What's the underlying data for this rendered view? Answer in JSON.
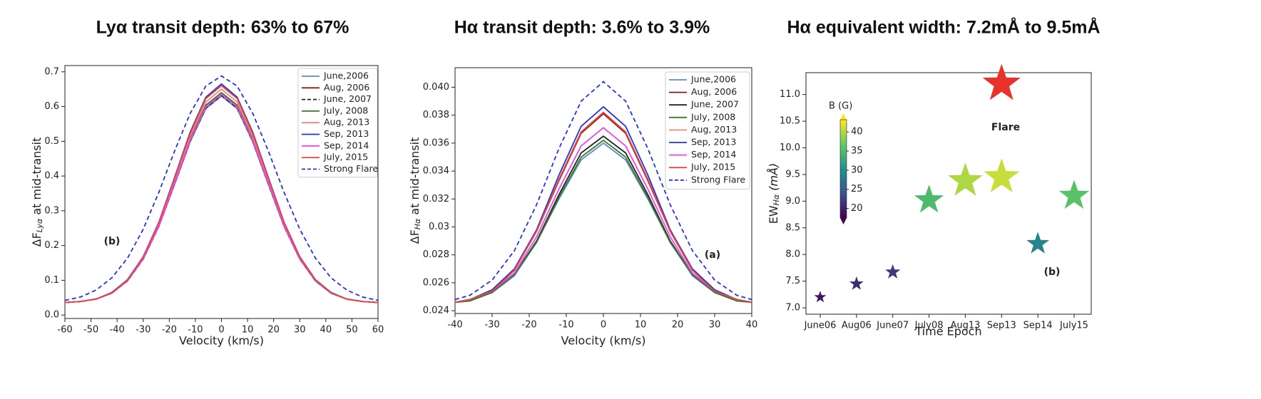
{
  "chart_data": [
    {
      "type": "line",
      "title": "Lyα transit depth: 63% to 67%",
      "xlabel": "Velocity (km/s)",
      "ylabel": {
        "text": "ΔF",
        "sub": "Lyα",
        "rest": " at mid-transit"
      },
      "x": [
        -60,
        -54,
        -48,
        -42,
        -36,
        -30,
        -24,
        -18,
        -12,
        -6,
        0,
        6,
        12,
        18,
        24,
        30,
        36,
        42,
        48,
        54,
        60
      ],
      "xlim": [
        -60,
        60
      ],
      "xticks": [
        -60,
        -50,
        -40,
        -30,
        -20,
        -10,
        0,
        10,
        20,
        30,
        40,
        50,
        60
      ],
      "ylim": [
        -0.01,
        0.718
      ],
      "yticks": [
        {
          "value": 0,
          "label": "0.0"
        },
        0.1,
        0.2,
        0.3,
        0.4,
        0.5,
        0.6,
        0.7
      ],
      "legend": "upper right",
      "annotations": [
        "(b)"
      ],
      "series": [
        {
          "name": "June,2006",
          "color": "#5b8cc4",
          "dash": false,
          "values": [
            0.036,
            0.039,
            0.046,
            0.063,
            0.098,
            0.161,
            0.255,
            0.375,
            0.498,
            0.594,
            0.63,
            0.594,
            0.498,
            0.375,
            0.255,
            0.161,
            0.098,
            0.063,
            0.046,
            0.039,
            0.036
          ]
        },
        {
          "name": "Aug, 2006",
          "color": "#8b1a1a",
          "dash": false,
          "values": [
            0.036,
            0.039,
            0.046,
            0.063,
            0.099,
            0.162,
            0.256,
            0.378,
            0.502,
            0.599,
            0.635,
            0.599,
            0.502,
            0.378,
            0.256,
            0.162,
            0.099,
            0.063,
            0.046,
            0.039,
            0.036
          ]
        },
        {
          "name": "June, 2007",
          "color": "#222222",
          "dash": true,
          "values": [
            0.036,
            0.039,
            0.046,
            0.063,
            0.098,
            0.161,
            0.255,
            0.376,
            0.5,
            0.596,
            0.632,
            0.596,
            0.5,
            0.376,
            0.255,
            0.161,
            0.098,
            0.063,
            0.046,
            0.039,
            0.036
          ]
        },
        {
          "name": "July, 2008",
          "color": "#3a7a2a",
          "dash": false,
          "values": [
            0.036,
            0.039,
            0.046,
            0.063,
            0.099,
            0.163,
            0.258,
            0.38,
            0.506,
            0.604,
            0.64,
            0.604,
            0.506,
            0.38,
            0.258,
            0.163,
            0.099,
            0.063,
            0.046,
            0.039,
            0.036
          ]
        },
        {
          "name": "Aug, 2013",
          "color": "#f08878",
          "dash": false,
          "values": [
            0.036,
            0.039,
            0.046,
            0.064,
            0.1,
            0.165,
            0.262,
            0.386,
            0.514,
            0.613,
            0.65,
            0.613,
            0.514,
            0.386,
            0.262,
            0.165,
            0.1,
            0.064,
            0.046,
            0.039,
            0.036
          ]
        },
        {
          "name": "Sep, 2013",
          "color": "#2233dd",
          "dash": false,
          "values": [
            0.036,
            0.039,
            0.046,
            0.065,
            0.102,
            0.168,
            0.267,
            0.395,
            0.526,
            0.627,
            0.665,
            0.627,
            0.526,
            0.395,
            0.267,
            0.168,
            0.102,
            0.065,
            0.046,
            0.039,
            0.036
          ]
        },
        {
          "name": "Sep, 2014",
          "color": "#ee44ee",
          "dash": false,
          "values": [
            0.036,
            0.039,
            0.046,
            0.063,
            0.099,
            0.162,
            0.256,
            0.378,
            0.502,
            0.599,
            0.635,
            0.599,
            0.502,
            0.378,
            0.256,
            0.162,
            0.099,
            0.063,
            0.046,
            0.039,
            0.036
          ]
        },
        {
          "name": "July, 2015",
          "color": "#e8483a",
          "dash": false,
          "values": [
            0.036,
            0.039,
            0.046,
            0.064,
            0.101,
            0.167,
            0.266,
            0.392,
            0.522,
            0.623,
            0.66,
            0.623,
            0.522,
            0.392,
            0.266,
            0.167,
            0.101,
            0.064,
            0.046,
            0.039,
            0.036
          ]
        },
        {
          "name": "Strong Flare",
          "color": "#2233dd",
          "dash": true,
          "values": [
            0.042,
            0.052,
            0.072,
            0.107,
            0.164,
            0.247,
            0.353,
            0.471,
            0.58,
            0.659,
            0.688,
            0.659,
            0.58,
            0.471,
            0.353,
            0.247,
            0.164,
            0.107,
            0.072,
            0.052,
            0.042
          ]
        }
      ]
    },
    {
      "type": "line",
      "title": "Hα transit depth: 3.6% to 3.9%",
      "xlabel": "Velocity (km/s)",
      "ylabel": {
        "text": "ΔF",
        "sub": "Hα",
        "rest": " at mid-transit"
      },
      "x": [
        -40,
        -36,
        -30,
        -24,
        -18,
        -12,
        -6,
        0,
        6,
        12,
        18,
        24,
        30,
        36,
        40
      ],
      "xlim": [
        -40,
        40
      ],
      "xticks": [
        -40,
        -30,
        -20,
        -10,
        0,
        10,
        20,
        30,
        40
      ],
      "ylim": [
        0.0238,
        0.0414
      ],
      "yticks": [
        0.024,
        0.026,
        0.028,
        0.03,
        0.032,
        0.034,
        0.036,
        0.038,
        {
          "value": 0.04,
          "label": "0.040"
        }
      ],
      "legend": "upper right",
      "annotations": [
        "(a)"
      ],
      "series": [
        {
          "name": "June,2006",
          "color": "#5b8cc4",
          "dash": false,
          "values": [
            0.0246,
            0.0247,
            0.0253,
            0.0265,
            0.0289,
            0.032,
            0.0348,
            0.036,
            0.0348,
            0.032,
            0.0289,
            0.0265,
            0.0253,
            0.0247,
            0.0246
          ]
        },
        {
          "name": "Aug, 2006",
          "color": "#8b1a1a",
          "dash": false,
          "values": [
            0.0246,
            0.0248,
            0.0254,
            0.0269,
            0.0297,
            0.0333,
            0.0367,
            0.0381,
            0.0367,
            0.0333,
            0.0297,
            0.0269,
            0.0254,
            0.0248,
            0.0246
          ]
        },
        {
          "name": "June, 2007",
          "color": "#222222",
          "dash": false,
          "values": [
            0.0246,
            0.0248,
            0.0253,
            0.0266,
            0.029,
            0.0323,
            0.0353,
            0.0365,
            0.0353,
            0.0323,
            0.029,
            0.0266,
            0.0253,
            0.0248,
            0.0246
          ]
        },
        {
          "name": "July, 2008",
          "color": "#3a7a2a",
          "dash": false,
          "values": [
            0.0246,
            0.0247,
            0.0253,
            0.0266,
            0.0289,
            0.0321,
            0.035,
            0.0362,
            0.035,
            0.0321,
            0.0289,
            0.0266,
            0.0253,
            0.0247,
            0.0246
          ]
        },
        {
          "name": "Aug, 2013",
          "color": "#f08878",
          "dash": false,
          "values": [
            0.0246,
            0.0248,
            0.0254,
            0.0269,
            0.0297,
            0.0334,
            0.0368,
            0.0382,
            0.0368,
            0.0334,
            0.0297,
            0.0269,
            0.0254,
            0.0248,
            0.0246
          ]
        },
        {
          "name": "Sep, 2013",
          "color": "#2233dd",
          "dash": false,
          "values": [
            0.0246,
            0.0248,
            0.0255,
            0.027,
            0.0298,
            0.0337,
            0.0372,
            0.0386,
            0.0372,
            0.0337,
            0.0298,
            0.027,
            0.0255,
            0.0248,
            0.0246
          ]
        },
        {
          "name": "Sep, 2014",
          "color": "#ee44ee",
          "dash": false,
          "values": [
            0.0246,
            0.0248,
            0.0254,
            0.0267,
            0.0293,
            0.0327,
            0.0358,
            0.0371,
            0.0358,
            0.0327,
            0.0293,
            0.0267,
            0.0254,
            0.0248,
            0.0246
          ]
        },
        {
          "name": "July, 2015",
          "color": "#e8483a",
          "dash": false,
          "values": [
            0.0246,
            0.0248,
            0.0254,
            0.0269,
            0.0297,
            0.0334,
            0.0368,
            0.0382,
            0.0368,
            0.0334,
            0.0297,
            0.0269,
            0.0254,
            0.0248,
            0.0246
          ]
        },
        {
          "name": "Strong Flare",
          "color": "#2233dd",
          "dash": true,
          "values": [
            0.0248,
            0.0251,
            0.0262,
            0.0283,
            0.0316,
            0.0356,
            0.039,
            0.0404,
            0.039,
            0.0356,
            0.0316,
            0.0283,
            0.0262,
            0.0251,
            0.0248
          ]
        }
      ]
    },
    {
      "type": "scatter",
      "title": "Hα equivalent width: 7.2mÅ to 9.5mÅ",
      "xlabel": "Time Epoch",
      "ylabel": {
        "text": "EW",
        "sub": "Hα",
        "rest": " (mÅ)"
      },
      "categories": [
        "June06",
        "Aug06",
        "June07",
        "July08",
        "Aug13",
        "Sep13",
        "Sep14",
        "July15"
      ],
      "values": [
        7.2,
        7.45,
        7.67,
        9.02,
        9.38,
        9.45,
        8.2,
        9.1
      ],
      "field": [
        19,
        21,
        22,
        35,
        40,
        41,
        29,
        36
      ],
      "flare": {
        "x": "Sep13",
        "value": 11.2,
        "color": "#e8322a"
      },
      "colorbar": {
        "label": "B (G)",
        "lim": [
          17.5,
          43.2
        ],
        "ticks": [
          20,
          25,
          30,
          35,
          40
        ],
        "colormap": "viridis"
      },
      "ylim": [
        6.88,
        11.41
      ],
      "yticks": [
        {
          "value": 7,
          "label": "7.0"
        },
        7.5,
        {
          "value": 8,
          "label": "8.0"
        },
        8.5,
        {
          "value": 9,
          "label": "9.0"
        },
        9.5,
        {
          "value": 10,
          "label": "10.0"
        },
        10.5,
        {
          "value": 11,
          "label": "11.0"
        }
      ],
      "annotations": [
        "Flare",
        "(b)"
      ]
    }
  ]
}
